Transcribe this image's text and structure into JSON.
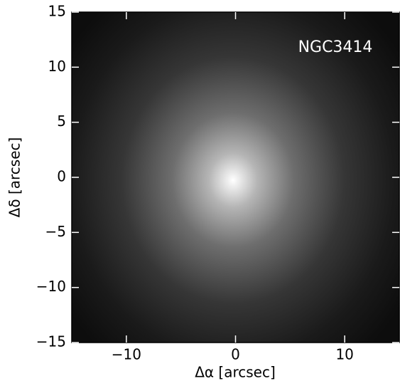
{
  "chart_data": {
    "type": "image",
    "annotation": "NGC3414",
    "xlabel": "Δα [arcsec]",
    "ylabel": "Δδ [arcsec]",
    "xlim": [
      -15,
      15
    ],
    "ylim": [
      -15,
      15
    ],
    "xticks": [
      {
        "value": -10,
        "label": "−10"
      },
      0,
      10
    ],
    "yticks": [
      {
        "value": -15,
        "label": "−15"
      },
      {
        "value": -10,
        "label": "−10"
      },
      {
        "value": -5,
        "label": "−5"
      },
      0,
      5,
      10,
      15
    ],
    "colormap": "gray"
  }
}
